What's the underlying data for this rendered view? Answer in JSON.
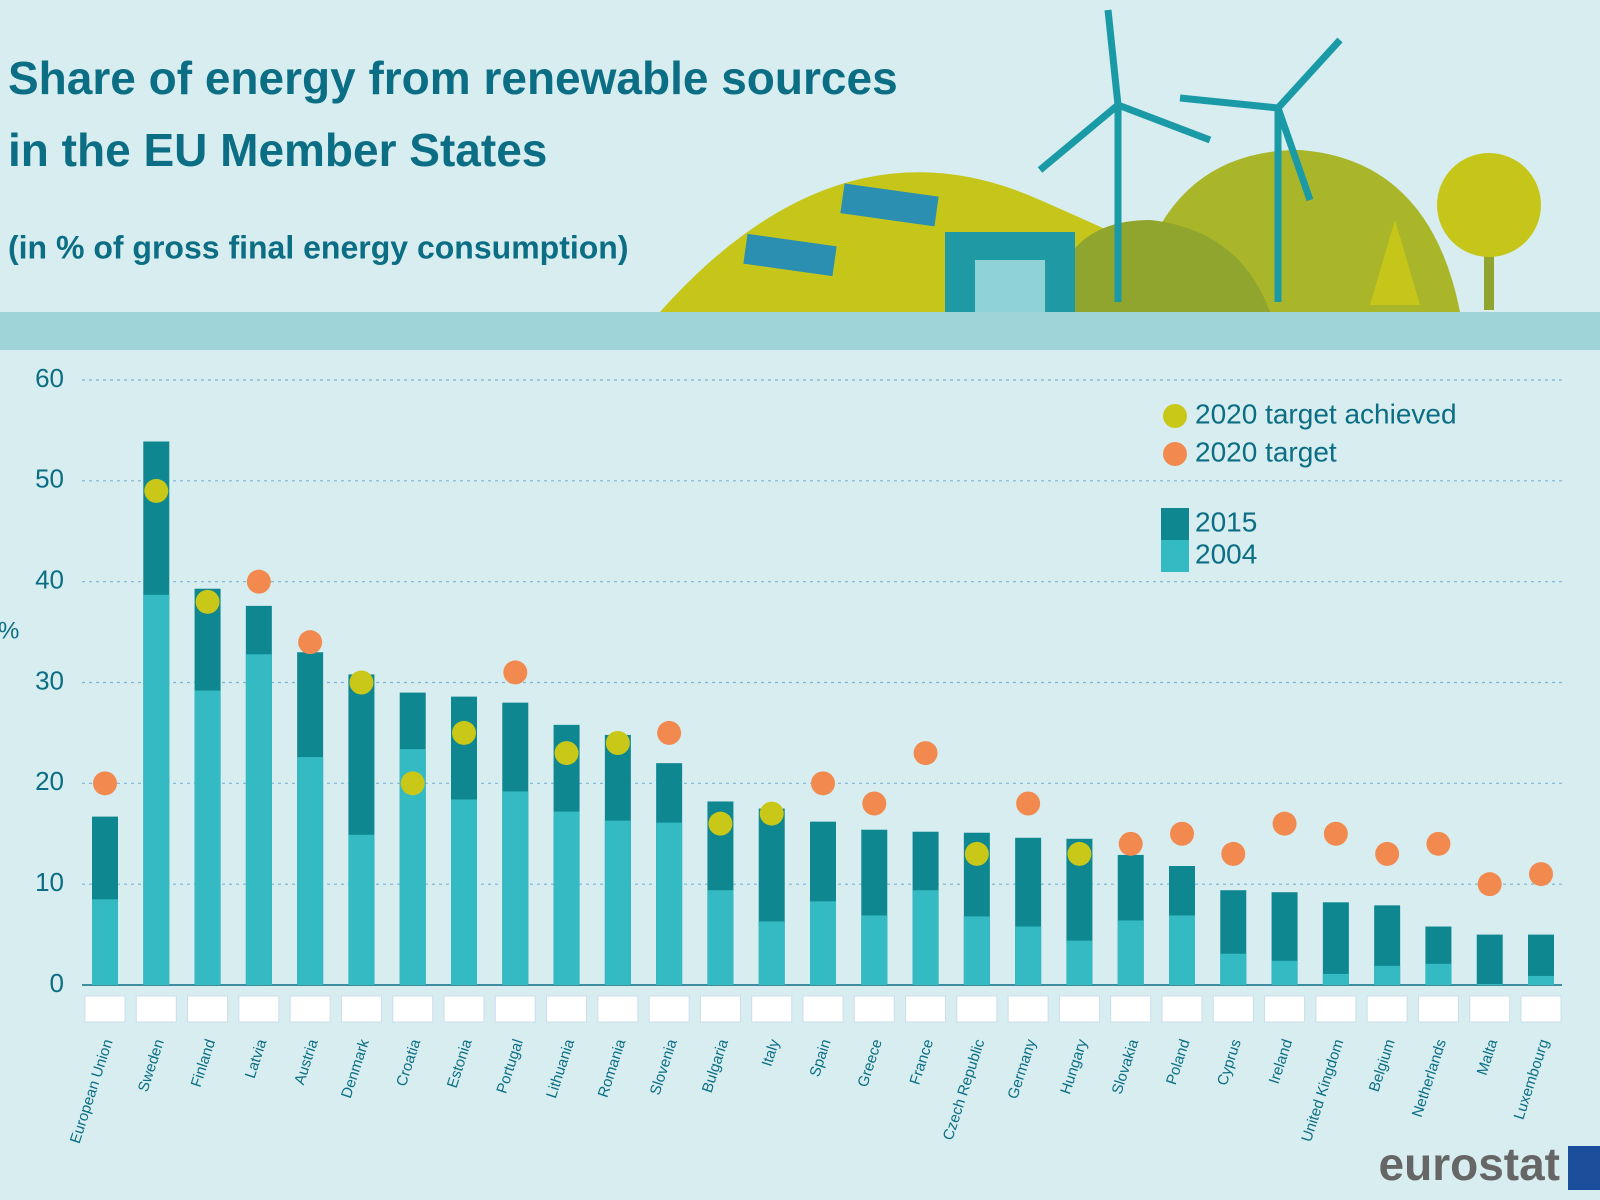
{
  "chart_data": {
    "type": "bar",
    "title": "Share of energy from renewable sources in the EU Member States",
    "subtitle": "(in % of gross final energy consumption)",
    "y_label": "%",
    "source": "eurostat",
    "categories": [
      "European Union",
      "Sweden",
      "Finland",
      "Latvia",
      "Austria",
      "Denmark",
      "Croatia",
      "Estonia",
      "Portugal",
      "Lithuania",
      "Romania",
      "Slovenia",
      "Bulgaria",
      "Italy",
      "Spain",
      "Greece",
      "France",
      "Czech Republic",
      "Germany",
      "Hungary",
      "Slovakia",
      "Poland",
      "Cyprus",
      "Ireland",
      "United Kingdom",
      "Belgium",
      "Netherlands",
      "Malta",
      "Luxembourg"
    ],
    "series": [
      {
        "name": "2015",
        "color": "#0f8790",
        "values": [
          16.7,
          53.9,
          39.3,
          37.6,
          33.0,
          30.8,
          29.0,
          28.6,
          28.0,
          25.8,
          24.8,
          22.0,
          18.2,
          17.5,
          16.2,
          15.4,
          15.2,
          15.1,
          14.6,
          14.5,
          12.9,
          11.8,
          9.4,
          9.2,
          8.2,
          7.9,
          5.8,
          5.0,
          5.0
        ]
      },
      {
        "name": "2004",
        "color": "#34bac3",
        "values": [
          8.5,
          38.7,
          29.2,
          32.8,
          22.6,
          14.9,
          23.4,
          18.4,
          19.2,
          17.2,
          16.3,
          16.1,
          9.4,
          6.3,
          8.3,
          6.9,
          9.4,
          6.8,
          5.8,
          4.4,
          6.4,
          6.9,
          3.1,
          2.4,
          1.1,
          1.9,
          2.1,
          0.1,
          0.9
        ]
      }
    ],
    "markers": [
      {
        "name": "2020 target achieved",
        "color": "#c9c717",
        "values": [
          null,
          49,
          38,
          null,
          null,
          30,
          20,
          25,
          null,
          23,
          24,
          null,
          16,
          17,
          null,
          null,
          null,
          13,
          null,
          13,
          null,
          null,
          null,
          null,
          null,
          null,
          null,
          null,
          null
        ]
      },
      {
        "name": "2020 target",
        "color": "#f28a4f",
        "values": [
          20,
          null,
          null,
          40,
          34,
          null,
          null,
          null,
          31,
          null,
          null,
          25,
          null,
          null,
          20,
          18,
          23,
          null,
          18,
          null,
          14,
          15,
          13,
          16,
          15,
          13,
          14,
          10,
          11
        ]
      }
    ],
    "ylim": [
      0,
      60
    ],
    "yticks": [
      0,
      10,
      20,
      30,
      40,
      50,
      60
    ],
    "grid": true,
    "legend": "upper right"
  }
}
